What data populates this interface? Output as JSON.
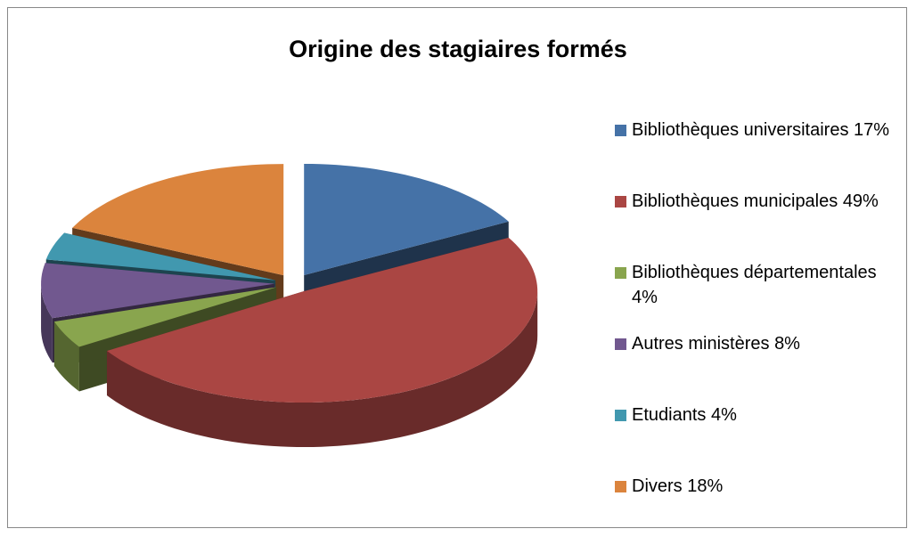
{
  "chart_data": {
    "type": "pie3d",
    "title": "Origine des stagiaires formés",
    "categories": [
      "Bibliothèques universitaires",
      "Bibliothèques municipales",
      "Bibliothèques départementales",
      "Autres ministères",
      "Etudiants",
      "Divers"
    ],
    "values": [
      17,
      49,
      4,
      8,
      4,
      18
    ],
    "value_labels": [
      "17%",
      "49%",
      "4%",
      "8%",
      "4%",
      "18%"
    ],
    "colors": [
      "#4572a7",
      "#aa4643",
      "#89a54e",
      "#71588f",
      "#4198af",
      "#db843d"
    ],
    "legend": "right"
  }
}
